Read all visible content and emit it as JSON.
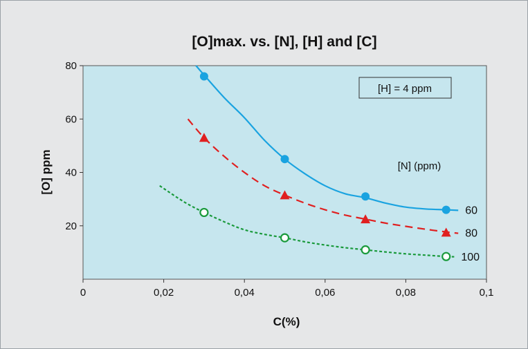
{
  "chart_data": {
    "type": "line",
    "title": "[O]max. vs. [N], [H] and [C]",
    "xlabel": "C(%)",
    "ylabel": "[O] ppm",
    "xlim": [
      0,
      0.1
    ],
    "ylim": [
      0,
      80
    ],
    "x_ticks": [
      "0",
      "0,02",
      "0,04",
      "0,06",
      "0,08",
      "0,1"
    ],
    "y_ticks": [
      "20",
      "40",
      "60",
      "80"
    ],
    "grid": false,
    "plot_background": "#c6e6ee",
    "annotation_box": "[H] = 4 ppm",
    "legend_title": "[N] (ppm)",
    "series": [
      {
        "name": "60",
        "color": "#1aa3e0",
        "line_style": "solid",
        "marker": "filled-circle",
        "x": [
          0.03,
          0.05,
          0.07,
          0.09
        ],
        "y": [
          76,
          45,
          31,
          26
        ],
        "curve": [
          [
            0.028,
            80
          ],
          [
            0.03,
            76.5
          ],
          [
            0.035,
            68
          ],
          [
            0.04,
            60.5
          ],
          [
            0.045,
            52
          ],
          [
            0.05,
            45
          ],
          [
            0.055,
            39.5
          ],
          [
            0.06,
            35
          ],
          [
            0.065,
            32
          ],
          [
            0.07,
            30.5
          ],
          [
            0.075,
            28.5
          ],
          [
            0.08,
            27
          ],
          [
            0.085,
            26.3
          ],
          [
            0.09,
            26
          ],
          [
            0.093,
            25.8
          ]
        ]
      },
      {
        "name": "80",
        "color": "#e02020",
        "line_style": "dashed",
        "marker": "filled-triangle",
        "x": [
          0.03,
          0.05,
          0.07,
          0.09
        ],
        "y": [
          53,
          31.5,
          22.5,
          17.5
        ],
        "curve": [
          [
            0.026,
            60
          ],
          [
            0.03,
            53
          ],
          [
            0.035,
            46
          ],
          [
            0.04,
            40
          ],
          [
            0.045,
            35
          ],
          [
            0.05,
            31.5
          ],
          [
            0.055,
            28.5
          ],
          [
            0.06,
            26
          ],
          [
            0.065,
            24
          ],
          [
            0.07,
            22.5
          ],
          [
            0.075,
            21
          ],
          [
            0.08,
            19.8
          ],
          [
            0.085,
            18.7
          ],
          [
            0.09,
            17.7
          ],
          [
            0.093,
            17.2
          ]
        ]
      },
      {
        "name": "100",
        "color": "#1a9a3c",
        "line_style": "dotted",
        "marker": "open-circle",
        "x": [
          0.03,
          0.05,
          0.07,
          0.09
        ],
        "y": [
          25,
          15.5,
          11,
          8.5
        ],
        "curve": [
          [
            0.019,
            35
          ],
          [
            0.025,
            29
          ],
          [
            0.03,
            25
          ],
          [
            0.035,
            21.5
          ],
          [
            0.04,
            18.5
          ],
          [
            0.045,
            16.8
          ],
          [
            0.05,
            15.5
          ],
          [
            0.055,
            14
          ],
          [
            0.06,
            12.8
          ],
          [
            0.065,
            11.8
          ],
          [
            0.07,
            11
          ],
          [
            0.075,
            10.2
          ],
          [
            0.08,
            9.5
          ],
          [
            0.085,
            9
          ],
          [
            0.09,
            8.5
          ],
          [
            0.092,
            8.4
          ]
        ]
      }
    ]
  }
}
